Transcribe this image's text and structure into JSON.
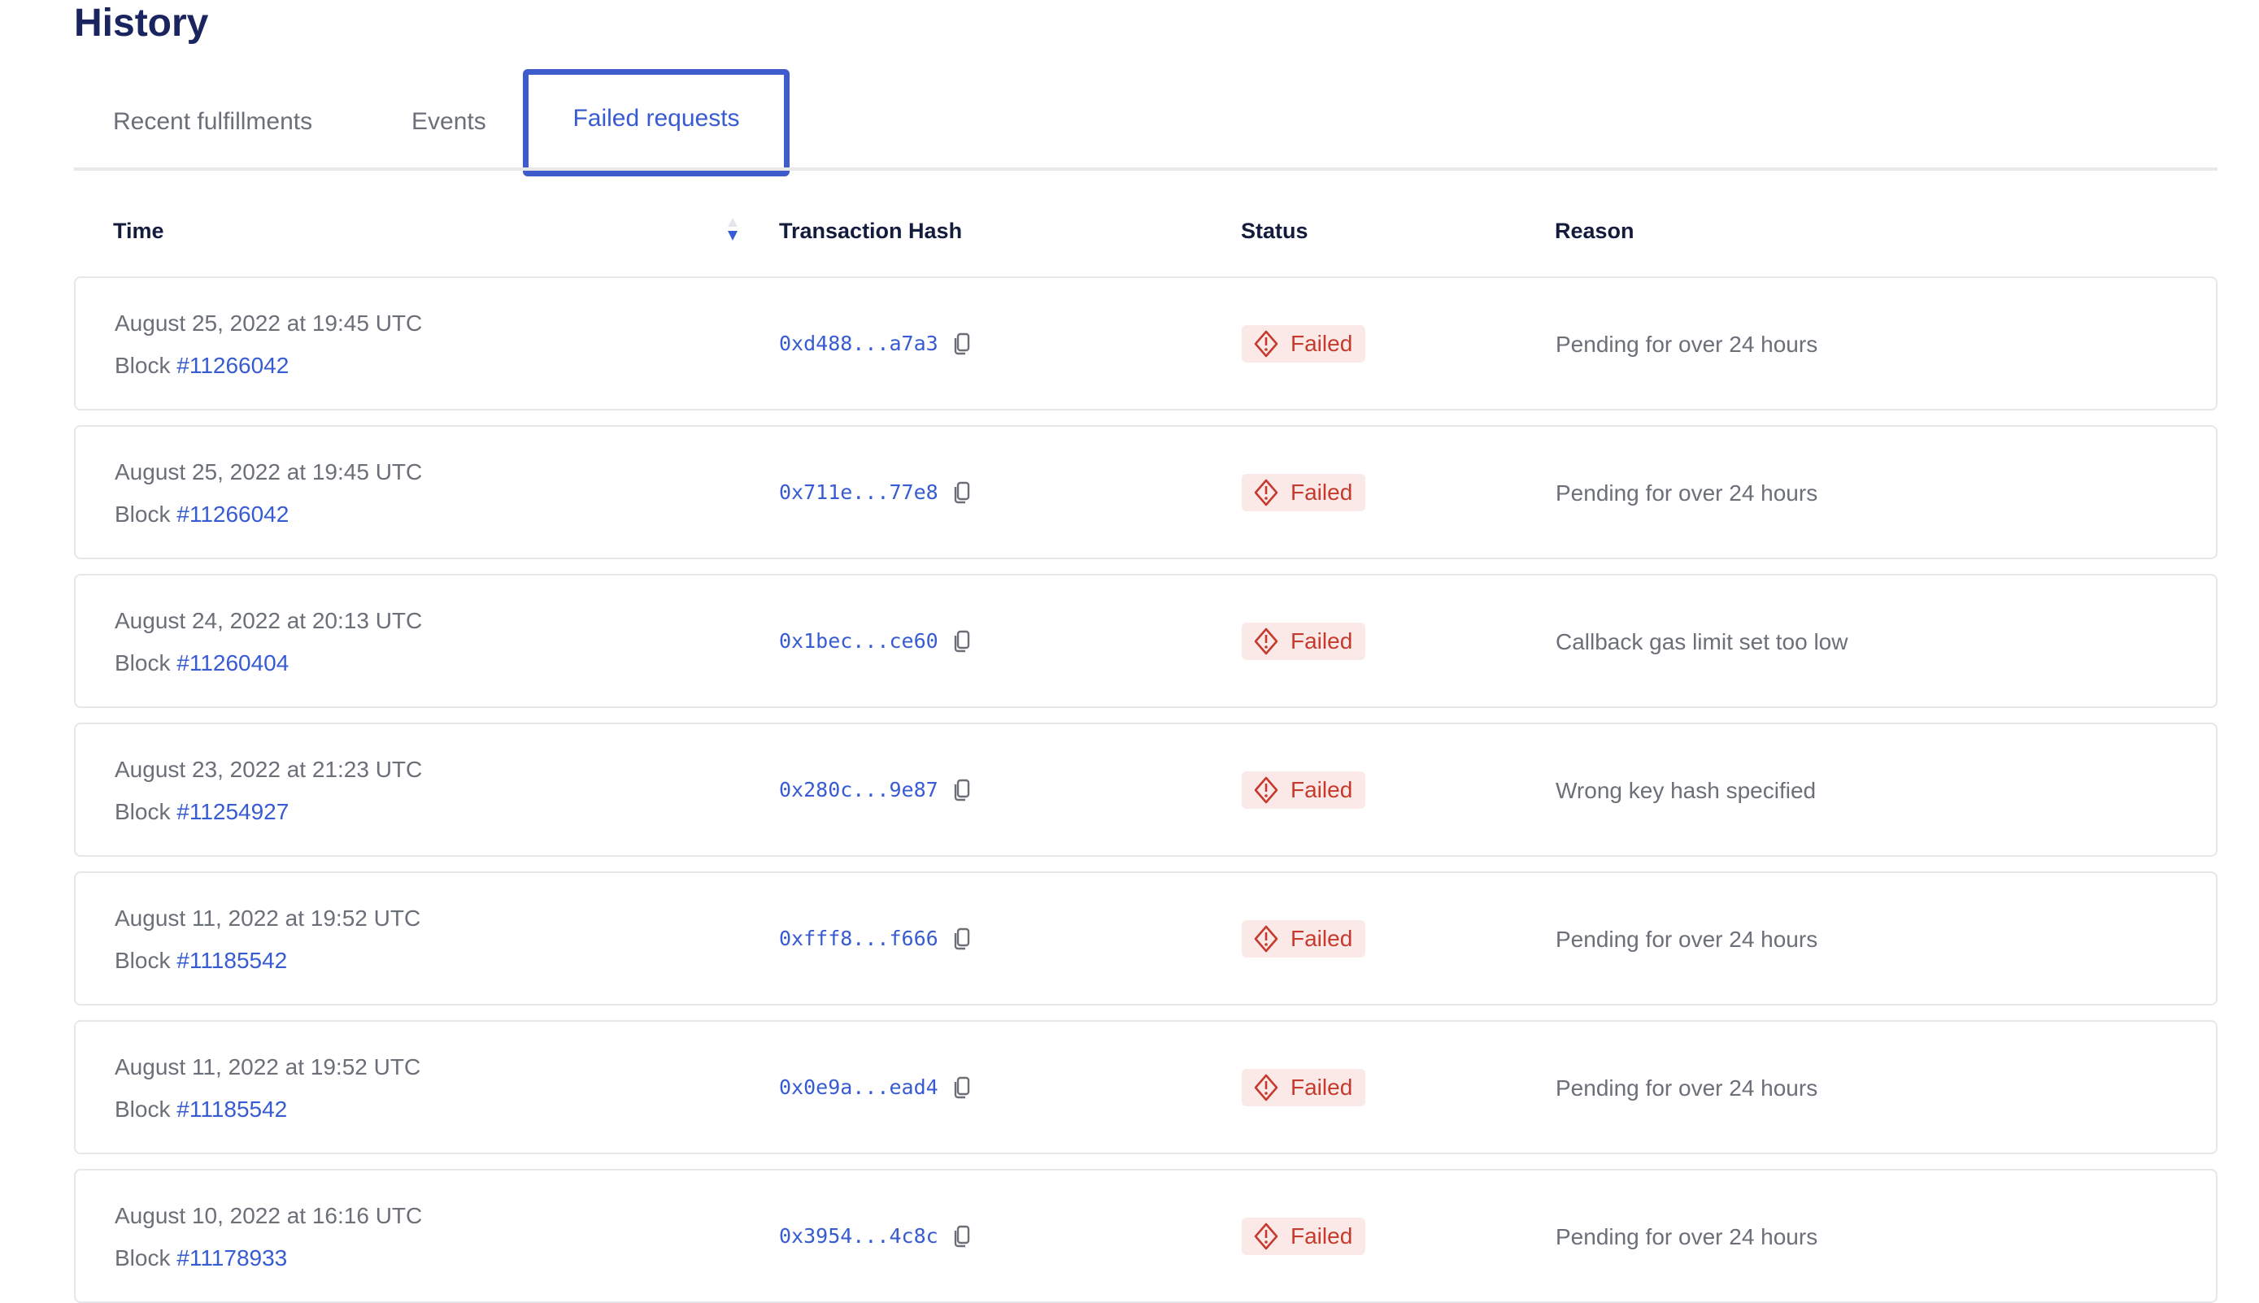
{
  "title": "History",
  "tabs": [
    {
      "label": "Recent fulfillments"
    },
    {
      "label": "Events"
    },
    {
      "label": "Failed requests",
      "active": true
    }
  ],
  "columns": {
    "time": "Time",
    "hash": "Transaction Hash",
    "status": "Status",
    "reason": "Reason"
  },
  "sort": {
    "column": "Time",
    "direction": "descending"
  },
  "colors": {
    "accent": "#375bd2",
    "failed": "#c63a2d",
    "failed_bg": "#fbe9e8"
  },
  "rows": [
    {
      "date": "August 25, 2022 at 19:45 UTC",
      "block_label": "Block",
      "block": "#11266042",
      "hash": "0xd488...a7a3",
      "status": "Failed",
      "reason": "Pending for over 24 hours"
    },
    {
      "date": "August 25, 2022 at 19:45 UTC",
      "block_label": "Block",
      "block": "#11266042",
      "hash": "0x711e...77e8",
      "status": "Failed",
      "reason": "Pending for over 24 hours"
    },
    {
      "date": "August 24, 2022 at 20:13 UTC",
      "block_label": "Block",
      "block": "#11260404",
      "hash": "0x1bec...ce60",
      "status": "Failed",
      "reason": "Callback gas limit set too low"
    },
    {
      "date": "August 23, 2022 at 21:23 UTC",
      "block_label": "Block",
      "block": "#11254927",
      "hash": "0x280c...9e87",
      "status": "Failed",
      "reason": "Wrong key hash specified"
    },
    {
      "date": "August 11, 2022 at 19:52 UTC",
      "block_label": "Block",
      "block": "#11185542",
      "hash": "0xfff8...f666",
      "status": "Failed",
      "reason": "Pending for over 24 hours"
    },
    {
      "date": "August 11, 2022 at 19:52 UTC",
      "block_label": "Block",
      "block": "#11185542",
      "hash": "0x0e9a...ead4",
      "status": "Failed",
      "reason": "Pending for over 24 hours"
    },
    {
      "date": "August 10, 2022 at 16:16 UTC",
      "block_label": "Block",
      "block": "#11178933",
      "hash": "0x3954...4c8c",
      "status": "Failed",
      "reason": "Pending for over 24 hours"
    }
  ]
}
